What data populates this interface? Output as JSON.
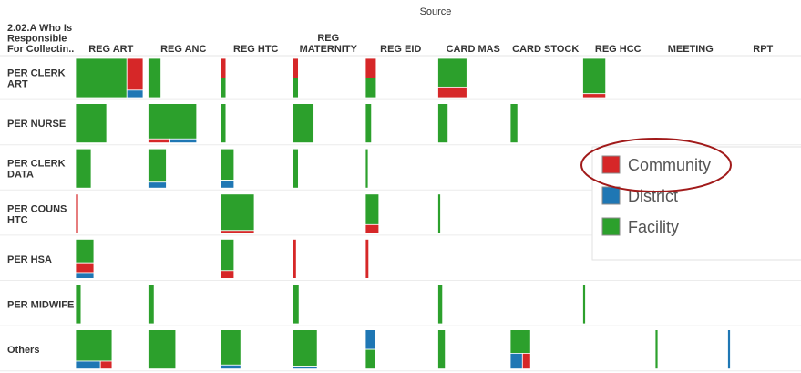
{
  "chart_data": {
    "type": "heatmap",
    "title": "Source",
    "row_header": [
      "2.02.A Who Is",
      "Responsible",
      "For Collectin.."
    ],
    "columns": [
      {
        "key": "REG ART",
        "lines": [
          "REG ART"
        ]
      },
      {
        "key": "REG ANC",
        "lines": [
          "REG ANC"
        ]
      },
      {
        "key": "REG HTC",
        "lines": [
          "REG HTC"
        ]
      },
      {
        "key": "REG MATERNITY",
        "lines": [
          "REG",
          "MATERNITY"
        ]
      },
      {
        "key": "REG EID",
        "lines": [
          "REG EID"
        ]
      },
      {
        "key": "CARD MAS",
        "lines": [
          "CARD MAS"
        ]
      },
      {
        "key": "CARD STOCK",
        "lines": [
          "CARD STOCK"
        ]
      },
      {
        "key": "REG HCC",
        "lines": [
          "REG HCC"
        ]
      },
      {
        "key": "MEETING",
        "lines": [
          "MEETING"
        ]
      },
      {
        "key": "RPT",
        "lines": [
          "RPT"
        ]
      }
    ],
    "rows": [
      {
        "key": "PER CLERK ART",
        "lines": [
          "PER CLERK",
          "ART"
        ]
      },
      {
        "key": "PER NURSE",
        "lines": [
          "PER NURSE"
        ]
      },
      {
        "key": "PER CLERK DATA",
        "lines": [
          "PER CLERK",
          "DATA"
        ]
      },
      {
        "key": "PER COUNS HTC",
        "lines": [
          "PER COUNS",
          "HTC"
        ]
      },
      {
        "key": "PER HSA",
        "lines": [
          "PER HSA"
        ]
      },
      {
        "key": "PER MIDWIFE",
        "lines": [
          "PER MIDWIFE"
        ]
      },
      {
        "key": "Others",
        "lines": [
          "Others"
        ]
      }
    ],
    "legend": {
      "placement": "right",
      "items": [
        {
          "name": "Community",
          "color": "#d62728"
        },
        {
          "name": "District",
          "color": "#1f77b4"
        },
        {
          "name": "Facility",
          "color": "#2ca02c"
        }
      ],
      "highlight": "Community"
    },
    "cells": [
      {
        "row": 0,
        "col": 0,
        "w": 1.0,
        "parts": [
          {
            "s": "Facility",
            "f": 0.76
          },
          {
            "s": "Community",
            "f": 0.24,
            "split": [
              {
                "s": "Community",
                "f": 0.81
              },
              {
                "s": "District",
                "f": 0.19
              }
            ]
          }
        ]
      },
      {
        "row": 0,
        "col": 1,
        "w": 0.19,
        "parts": [
          {
            "s": "Facility",
            "f": 1.0
          }
        ]
      },
      {
        "row": 0,
        "col": 2,
        "w": 0.08,
        "parts": [
          {
            "s": "Community",
            "f": 0.5
          },
          {
            "s": "Facility",
            "f": 0.5
          }
        ]
      },
      {
        "row": 0,
        "col": 3,
        "w": 0.08,
        "parts": [
          {
            "s": "Community",
            "f": 0.5
          },
          {
            "s": "Facility",
            "f": 0.5
          }
        ]
      },
      {
        "row": 0,
        "col": 4,
        "w": 0.16,
        "parts": [
          {
            "s": "Community",
            "f": 0.5
          },
          {
            "s": "Facility",
            "f": 0.5
          }
        ]
      },
      {
        "row": 0,
        "col": 5,
        "w": 0.43,
        "parts": [
          {
            "s": "Facility",
            "f": 0.73
          },
          {
            "s": "Community",
            "f": 0.27
          }
        ]
      },
      {
        "row": 0,
        "col": 7,
        "w": 0.34,
        "parts": [
          {
            "s": "Facility",
            "f": 0.9
          },
          {
            "s": "Community",
            "f": 0.1
          }
        ]
      },
      {
        "row": 1,
        "col": 0,
        "w": 0.46,
        "parts": [
          {
            "s": "Facility",
            "f": 1.0
          }
        ]
      },
      {
        "row": 1,
        "col": 1,
        "w": 0.72,
        "parts": [
          {
            "s": "Facility",
            "f": 0.9
          },
          {
            "s": "Community",
            "f": 0.1,
            "split": [
              {
                "s": "Community",
                "f": 0.45
              },
              {
                "s": "District",
                "f": 0.55
              }
            ]
          }
        ]
      },
      {
        "row": 1,
        "col": 2,
        "w": 0.08,
        "parts": [
          {
            "s": "Facility",
            "f": 1.0
          }
        ]
      },
      {
        "row": 1,
        "col": 3,
        "w": 0.31,
        "parts": [
          {
            "s": "Facility",
            "f": 1.0
          }
        ]
      },
      {
        "row": 1,
        "col": 4,
        "w": 0.09,
        "parts": [
          {
            "s": "Facility",
            "f": 1.0
          }
        ]
      },
      {
        "row": 1,
        "col": 5,
        "w": 0.15,
        "parts": [
          {
            "s": "Facility",
            "f": 1.0
          }
        ]
      },
      {
        "row": 1,
        "col": 6,
        "w": 0.11,
        "parts": [
          {
            "s": "Facility",
            "f": 1.0
          }
        ]
      },
      {
        "row": 2,
        "col": 0,
        "w": 0.23,
        "parts": [
          {
            "s": "Facility",
            "f": 1.0
          }
        ]
      },
      {
        "row": 2,
        "col": 1,
        "w": 0.27,
        "parts": [
          {
            "s": "Facility",
            "f": 0.85
          },
          {
            "s": "District",
            "f": 0.15
          }
        ]
      },
      {
        "row": 2,
        "col": 2,
        "w": 0.2,
        "parts": [
          {
            "s": "Facility",
            "f": 0.8
          },
          {
            "s": "District",
            "f": 0.2
          }
        ]
      },
      {
        "row": 2,
        "col": 3,
        "w": 0.08,
        "parts": [
          {
            "s": "Facility",
            "f": 1.0
          }
        ]
      },
      {
        "row": 2,
        "col": 4,
        "w": 0.04,
        "parts": [
          {
            "s": "Facility",
            "f": 1.0
          }
        ]
      },
      {
        "row": 3,
        "col": 0,
        "w": 0.04,
        "parts": [
          {
            "s": "Community",
            "f": 1.0
          }
        ]
      },
      {
        "row": 3,
        "col": 2,
        "w": 0.5,
        "parts": [
          {
            "s": "Facility",
            "f": 0.93
          },
          {
            "s": "Community",
            "f": 0.07
          }
        ]
      },
      {
        "row": 3,
        "col": 4,
        "w": 0.2,
        "parts": [
          {
            "s": "Facility",
            "f": 0.78
          },
          {
            "s": "Community",
            "f": 0.22
          }
        ]
      },
      {
        "row": 3,
        "col": 5,
        "w": 0.04,
        "parts": [
          {
            "s": "Facility",
            "f": 1.0
          }
        ]
      },
      {
        "row": 4,
        "col": 0,
        "w": 0.27,
        "parts": [
          {
            "s": "Facility",
            "f": 0.6
          },
          {
            "s": "Community",
            "f": 0.25
          },
          {
            "s": "District",
            "f": 0.15
          }
        ]
      },
      {
        "row": 4,
        "col": 2,
        "w": 0.2,
        "parts": [
          {
            "s": "Facility",
            "f": 0.8
          },
          {
            "s": "Community",
            "f": 0.2
          }
        ]
      },
      {
        "row": 4,
        "col": 3,
        "w": 0.05,
        "parts": [
          {
            "s": "Community",
            "f": 1.0
          }
        ]
      },
      {
        "row": 4,
        "col": 4,
        "w": 0.05,
        "parts": [
          {
            "s": "Community",
            "f": 1.0
          }
        ]
      },
      {
        "row": 5,
        "col": 0,
        "w": 0.08,
        "parts": [
          {
            "s": "Facility",
            "f": 1.0
          }
        ]
      },
      {
        "row": 5,
        "col": 1,
        "w": 0.09,
        "parts": [
          {
            "s": "Facility",
            "f": 1.0
          }
        ]
      },
      {
        "row": 5,
        "col": 3,
        "w": 0.09,
        "parts": [
          {
            "s": "Facility",
            "f": 1.0
          }
        ]
      },
      {
        "row": 5,
        "col": 5,
        "w": 0.07,
        "parts": [
          {
            "s": "Facility",
            "f": 1.0
          }
        ]
      },
      {
        "row": 5,
        "col": 7,
        "w": 0.04,
        "parts": [
          {
            "s": "Facility",
            "f": 1.0
          }
        ]
      },
      {
        "row": 6,
        "col": 0,
        "w": 0.54,
        "parts": [
          {
            "s": "Facility",
            "f": 0.8
          },
          {
            "s": "District",
            "f": 0.2,
            "split": [
              {
                "s": "District",
                "f": 0.68
              },
              {
                "s": "Community",
                "f": 0.32
              }
            ]
          }
        ]
      },
      {
        "row": 6,
        "col": 1,
        "w": 0.41,
        "parts": [
          {
            "s": "Facility",
            "f": 1.0
          }
        ]
      },
      {
        "row": 6,
        "col": 2,
        "w": 0.3,
        "parts": [
          {
            "s": "Facility",
            "f": 0.9
          },
          {
            "s": "District",
            "f": 0.1
          }
        ]
      },
      {
        "row": 6,
        "col": 3,
        "w": 0.36,
        "parts": [
          {
            "s": "Facility",
            "f": 0.93
          },
          {
            "s": "District",
            "f": 0.07
          }
        ]
      },
      {
        "row": 6,
        "col": 4,
        "w": 0.15,
        "parts": [
          {
            "s": "District",
            "f": 0.5
          },
          {
            "s": "Facility",
            "f": 0.5
          }
        ]
      },
      {
        "row": 6,
        "col": 5,
        "w": 0.11,
        "parts": [
          {
            "s": "Facility",
            "f": 1.0
          }
        ]
      },
      {
        "row": 6,
        "col": 6,
        "w": 0.3,
        "parts": [
          {
            "s": "Facility",
            "f": 0.6
          },
          {
            "s": "District",
            "f": 0.4,
            "split": [
              {
                "s": "District",
                "f": 0.6
              },
              {
                "s": "Community",
                "f": 0.4
              }
            ]
          }
        ]
      },
      {
        "row": 6,
        "col": 8,
        "w": 0.04,
        "parts": [
          {
            "s": "Facility",
            "f": 1.0
          }
        ]
      },
      {
        "row": 6,
        "col": 9,
        "w": 0.04,
        "parts": [
          {
            "s": "District",
            "f": 1.0
          }
        ]
      }
    ]
  }
}
